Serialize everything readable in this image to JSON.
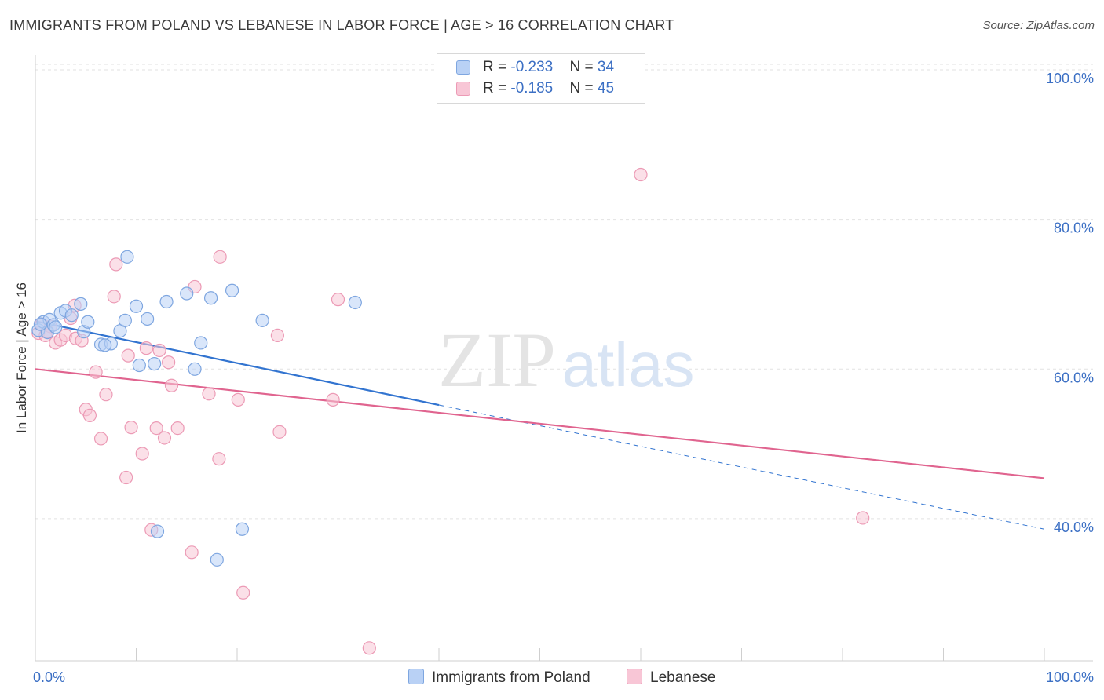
{
  "title": "IMMIGRANTS FROM POLAND VS LEBANESE IN LABOR FORCE | AGE > 16 CORRELATION CHART",
  "source": "Source: ZipAtlas.com",
  "watermark": {
    "zip": "ZIP",
    "atlas": "atlas"
  },
  "colors": {
    "poland_fill": "#b9d1f5",
    "poland_stroke": "#7ea6e0",
    "poland_line": "#3274d0",
    "lebanese_fill": "#f8c6d6",
    "lebanese_stroke": "#ec9ab5",
    "lebanese_line": "#e0648f",
    "tick_text": "#3b6fc4"
  },
  "legend": {
    "rows": [
      {
        "r_label": "R = ",
        "r_value": "-0.233",
        "n_label": "N = ",
        "n_value": "34"
      },
      {
        "r_label": "R = ",
        "r_value": "-0.185",
        "n_label": "N = ",
        "n_value": "45"
      }
    ]
  },
  "bottom_legend": {
    "poland": "Immigrants from Poland",
    "lebanese": "Lebanese"
  },
  "chart_data": {
    "type": "scatter",
    "xlabel": "",
    "ylabel": "In Labor Force | Age > 16",
    "xlim": [
      0,
      100
    ],
    "ylim": [
      21,
      102
    ],
    "x_tick_labels": [
      "0.0%",
      "100.0%"
    ],
    "y_ticks": [
      40,
      60,
      80,
      100
    ],
    "y_tick_labels": [
      "40.0%",
      "60.0%",
      "80.0%",
      "100.0%"
    ],
    "grid": true,
    "legend_position": "top-center",
    "series": [
      {
        "name": "Immigrants from Poland",
        "r": -0.233,
        "n": 34,
        "trend": {
          "x0": 0,
          "y0": 66.4,
          "x1": 40,
          "y1": 55.2,
          "dash_to_x": 100,
          "dash_to_y": 38.6
        },
        "points": [
          [
            0.3,
            65.2
          ],
          [
            0.8,
            66.3
          ],
          [
            1.2,
            64.9
          ],
          [
            1.4,
            66.6
          ],
          [
            1.8,
            65.9
          ],
          [
            2.5,
            67.5
          ],
          [
            3.0,
            67.8
          ],
          [
            3.6,
            67.2
          ],
          [
            4.5,
            68.7
          ],
          [
            4.8,
            65.0
          ],
          [
            5.2,
            66.3
          ],
          [
            6.5,
            63.3
          ],
          [
            7.5,
            63.4
          ],
          [
            8.4,
            65.1
          ],
          [
            8.9,
            66.5
          ],
          [
            9.1,
            75.0
          ],
          [
            10.0,
            68.4
          ],
          [
            10.3,
            60.5
          ],
          [
            11.1,
            66.7
          ],
          [
            11.8,
            60.7
          ],
          [
            12.1,
            38.3
          ],
          [
            13.0,
            69.0
          ],
          [
            15.0,
            70.1
          ],
          [
            15.8,
            60.0
          ],
          [
            16.4,
            63.5
          ],
          [
            17.4,
            69.5
          ],
          [
            18.0,
            34.5
          ],
          [
            19.5,
            70.5
          ],
          [
            20.5,
            38.6
          ],
          [
            22.5,
            66.5
          ],
          [
            31.7,
            68.9
          ],
          [
            2.0,
            65.6
          ],
          [
            0.5,
            66.0
          ],
          [
            6.9,
            63.2
          ]
        ]
      },
      {
        "name": "Lebanese",
        "r": -0.185,
        "n": 45,
        "trend": {
          "x0": 0,
          "y0": 60.0,
          "x1": 100,
          "y1": 45.4
        },
        "points": [
          [
            0.3,
            64.8
          ],
          [
            0.6,
            66.0
          ],
          [
            1.0,
            64.5
          ],
          [
            1.5,
            65.7
          ],
          [
            2.0,
            63.5
          ],
          [
            2.5,
            63.9
          ],
          [
            3.0,
            64.5
          ],
          [
            3.5,
            66.8
          ],
          [
            3.9,
            68.5
          ],
          [
            4.0,
            64.1
          ],
          [
            4.6,
            63.8
          ],
          [
            5.0,
            54.6
          ],
          [
            5.4,
            53.8
          ],
          [
            6.0,
            59.6
          ],
          [
            6.5,
            50.7
          ],
          [
            7.0,
            56.6
          ],
          [
            7.8,
            69.7
          ],
          [
            8.0,
            74.0
          ],
          [
            9.0,
            45.5
          ],
          [
            9.2,
            61.8
          ],
          [
            9.5,
            52.2
          ],
          [
            10.6,
            48.7
          ],
          [
            11.0,
            62.8
          ],
          [
            11.5,
            38.5
          ],
          [
            12.0,
            52.1
          ],
          [
            12.3,
            62.5
          ],
          [
            12.8,
            50.8
          ],
          [
            13.2,
            60.9
          ],
          [
            13.5,
            57.8
          ],
          [
            14.1,
            52.1
          ],
          [
            15.5,
            35.5
          ],
          [
            15.8,
            71.0
          ],
          [
            17.2,
            56.7
          ],
          [
            18.2,
            48.0
          ],
          [
            18.3,
            75.0
          ],
          [
            20.1,
            55.9
          ],
          [
            20.6,
            30.1
          ],
          [
            24.0,
            64.5
          ],
          [
            24.2,
            51.6
          ],
          [
            29.5,
            55.9
          ],
          [
            30.0,
            69.3
          ],
          [
            33.1,
            22.7
          ],
          [
            60.0,
            86.0
          ],
          [
            82.0,
            40.1
          ],
          [
            1.2,
            65.0
          ]
        ]
      }
    ]
  }
}
